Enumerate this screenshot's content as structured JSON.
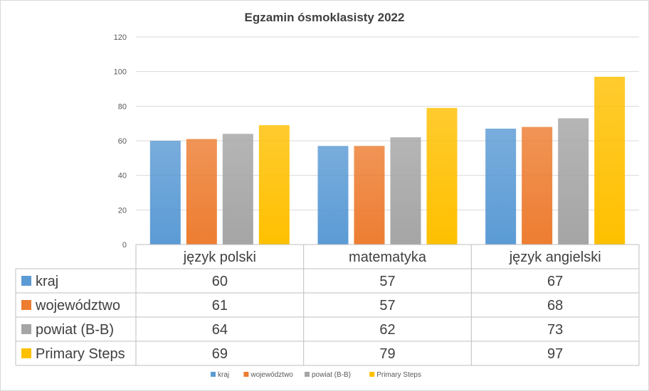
{
  "chart_data": {
    "type": "bar",
    "title": "Egzamin ósmoklasisty  2022",
    "categories": [
      "język polski",
      "matematyka",
      "język angielski"
    ],
    "series": [
      {
        "name": "kraj",
        "values": [
          60,
          57,
          67
        ],
        "color": "#5B9BD5"
      },
      {
        "name": "województwo",
        "values": [
          61,
          57,
          68
        ],
        "color": "#ED7D31"
      },
      {
        "name": "powiat (B-B)",
        "values": [
          64,
          62,
          73
        ],
        "color": "#A5A5A5"
      },
      {
        "name": "Primary Steps",
        "values": [
          69,
          79,
          97
        ],
        "color": "#FFC000"
      }
    ],
    "ylim": [
      0,
      120
    ],
    "yticks": [
      "0",
      "20",
      "40",
      "60",
      "80",
      "100",
      "120"
    ],
    "grid": true,
    "legend_position": "bottom",
    "data_table": true
  }
}
